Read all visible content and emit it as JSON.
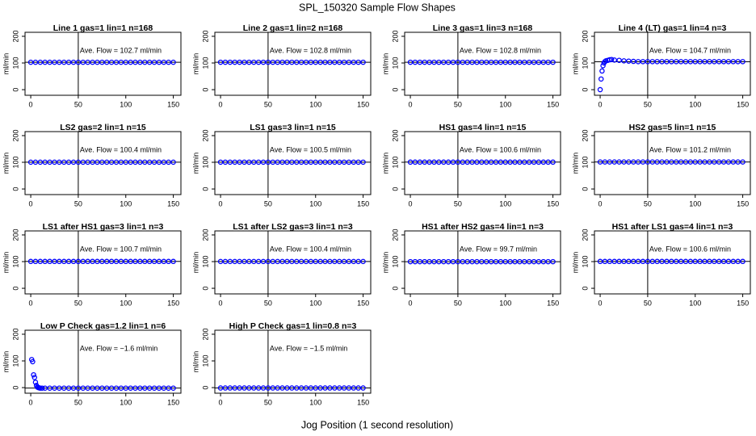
{
  "title": "SPL_150320  Sample Flow Shapes",
  "xlabel": "Jog Position (1 second resolution)",
  "chart_data": [
    {
      "type": "scatter",
      "title": "Line 1 gas=1 lin=1 n=168",
      "annotation": "Ave. Flow = 102.7  ml/min",
      "ylabel": "ml/min",
      "mean": 102.7,
      "vline": 50,
      "color": "#0000ff",
      "xlim": [
        -6,
        158
      ],
      "ylim": [
        -21,
        215
      ],
      "xticks": [
        0,
        50,
        100,
        150
      ],
      "yticks": [
        0,
        100,
        200
      ],
      "x": [
        0,
        5,
        10,
        15,
        20,
        25,
        30,
        35,
        40,
        45,
        50,
        55,
        60,
        65,
        70,
        75,
        80,
        85,
        90,
        95,
        100,
        105,
        110,
        115,
        120,
        125,
        130,
        135,
        140,
        145,
        150
      ],
      "y": [
        102.7,
        102.7,
        102.7,
        102.7,
        102.7,
        102.7,
        102.7,
        102.7,
        102.7,
        102.7,
        102.7,
        102.7,
        102.7,
        102.7,
        102.7,
        102.7,
        102.7,
        102.7,
        102.7,
        102.7,
        102.7,
        102.7,
        102.7,
        102.7,
        102.7,
        102.7,
        102.7,
        102.7,
        102.7,
        102.7,
        102.7
      ]
    },
    {
      "type": "scatter",
      "title": "Line 2 gas=1 lin=2 n=168",
      "annotation": "Ave. Flow = 102.8  ml/min",
      "ylabel": "ml/min",
      "mean": 102.8,
      "vline": 50,
      "color": "#0000ff",
      "xlim": [
        -6,
        158
      ],
      "ylim": [
        -21,
        215
      ],
      "xticks": [
        0,
        50,
        100,
        150
      ],
      "yticks": [
        0,
        100,
        200
      ],
      "x": [
        0,
        5,
        10,
        15,
        20,
        25,
        30,
        35,
        40,
        45,
        50,
        55,
        60,
        65,
        70,
        75,
        80,
        85,
        90,
        95,
        100,
        105,
        110,
        115,
        120,
        125,
        130,
        135,
        140,
        145,
        150
      ],
      "y": [
        102.8,
        102.8,
        102.8,
        102.8,
        102.8,
        102.8,
        102.8,
        102.8,
        102.8,
        102.8,
        102.8,
        102.8,
        102.8,
        102.8,
        102.8,
        102.8,
        102.8,
        102.8,
        102.8,
        102.8,
        102.8,
        102.8,
        102.8,
        102.8,
        102.8,
        102.8,
        102.8,
        102.8,
        102.8,
        102.8,
        102.8
      ]
    },
    {
      "type": "scatter",
      "title": "Line 3 gas=1 lin=3 n=168",
      "annotation": "Ave. Flow = 102.8  ml/min",
      "ylabel": "ml/min",
      "mean": 102.8,
      "vline": 50,
      "color": "#0000ff",
      "xlim": [
        -6,
        158
      ],
      "ylim": [
        -21,
        215
      ],
      "xticks": [
        0,
        50,
        100,
        150
      ],
      "yticks": [
        0,
        100,
        200
      ],
      "x": [
        0,
        5,
        10,
        15,
        20,
        25,
        30,
        35,
        40,
        45,
        50,
        55,
        60,
        65,
        70,
        75,
        80,
        85,
        90,
        95,
        100,
        105,
        110,
        115,
        120,
        125,
        130,
        135,
        140,
        145,
        150
      ],
      "y": [
        102.8,
        102.8,
        102.8,
        102.8,
        102.8,
        102.8,
        102.8,
        102.8,
        102.8,
        102.8,
        102.8,
        102.8,
        102.8,
        102.8,
        102.8,
        102.8,
        102.8,
        102.8,
        102.8,
        102.8,
        102.8,
        102.8,
        102.8,
        102.8,
        102.8,
        102.8,
        102.8,
        102.8,
        102.8,
        102.8,
        102.8
      ]
    },
    {
      "type": "scatter",
      "title": "Line 4 (LT) gas=1 lin=4 n=3",
      "annotation": "Ave. Flow = 104.7  ml/min",
      "ylabel": "ml/min",
      "mean": 104.7,
      "vline": 50,
      "color": "#0000ff",
      "xlim": [
        -6,
        158
      ],
      "ylim": [
        -21,
        215
      ],
      "xticks": [
        0,
        50,
        100,
        150
      ],
      "yticks": [
        0,
        100,
        200
      ],
      "x": [
        0,
        1,
        2,
        3,
        4,
        5,
        6,
        8,
        10,
        12,
        15,
        20,
        25,
        30,
        35,
        40,
        45,
        50,
        55,
        60,
        65,
        70,
        75,
        80,
        85,
        90,
        95,
        100,
        105,
        110,
        115,
        120,
        125,
        130,
        135,
        140,
        145,
        150
      ],
      "y": [
        0,
        40,
        70,
        90,
        100,
        105,
        108,
        110,
        112,
        113,
        111,
        110,
        108,
        107,
        106,
        105,
        105,
        105,
        105,
        105,
        105,
        105,
        105,
        105,
        105,
        105,
        105,
        105,
        105,
        105,
        105,
        105,
        105,
        105,
        105,
        105,
        105,
        105
      ]
    },
    {
      "type": "scatter",
      "title": "LS2 gas=2 lin=1 n=15",
      "annotation": "Ave. Flow = 100.4  ml/min",
      "ylabel": "ml/min",
      "mean": 100.4,
      "vline": 50,
      "color": "#0000ff",
      "xlim": [
        -6,
        158
      ],
      "ylim": [
        -21,
        215
      ],
      "xticks": [
        0,
        50,
        100,
        150
      ],
      "yticks": [
        0,
        100,
        200
      ],
      "x": [
        0,
        5,
        10,
        15,
        20,
        25,
        30,
        35,
        40,
        45,
        50,
        55,
        60,
        65,
        70,
        75,
        80,
        85,
        90,
        95,
        100,
        105,
        110,
        115,
        120,
        125,
        130,
        135,
        140,
        145,
        150
      ],
      "y": [
        100.4,
        100.4,
        100.4,
        100.4,
        100.4,
        100.4,
        100.4,
        100.4,
        100.4,
        100.4,
        100.4,
        100.4,
        100.4,
        100.4,
        100.4,
        100.4,
        100.4,
        100.4,
        100.4,
        100.4,
        100.4,
        100.4,
        100.4,
        100.4,
        100.4,
        100.4,
        100.4,
        100.4,
        100.4,
        100.4,
        100.4
      ]
    },
    {
      "type": "scatter",
      "title": "LS1 gas=3 lin=1 n=15",
      "annotation": "Ave. Flow = 100.5  ml/min",
      "ylabel": "ml/min",
      "mean": 100.5,
      "vline": 50,
      "color": "#0000ff",
      "xlim": [
        -6,
        158
      ],
      "ylim": [
        -21,
        215
      ],
      "xticks": [
        0,
        50,
        100,
        150
      ],
      "yticks": [
        0,
        100,
        200
      ],
      "x": [
        0,
        5,
        10,
        15,
        20,
        25,
        30,
        35,
        40,
        45,
        50,
        55,
        60,
        65,
        70,
        75,
        80,
        85,
        90,
        95,
        100,
        105,
        110,
        115,
        120,
        125,
        130,
        135,
        140,
        145,
        150
      ],
      "y": [
        100.5,
        100.5,
        100.5,
        100.5,
        100.5,
        100.5,
        100.5,
        100.5,
        100.5,
        100.5,
        100.5,
        100.5,
        100.5,
        100.5,
        100.5,
        100.5,
        100.5,
        100.5,
        100.5,
        100.5,
        100.5,
        100.5,
        100.5,
        100.5,
        100.5,
        100.5,
        100.5,
        100.5,
        100.5,
        100.5,
        100.5
      ]
    },
    {
      "type": "scatter",
      "title": "HS1 gas=4 lin=1 n=15",
      "annotation": "Ave. Flow = 100.6  ml/min",
      "ylabel": "ml/min",
      "mean": 100.6,
      "vline": 50,
      "color": "#0000ff",
      "xlim": [
        -6,
        158
      ],
      "ylim": [
        -21,
        215
      ],
      "xticks": [
        0,
        50,
        100,
        150
      ],
      "yticks": [
        0,
        100,
        200
      ],
      "x": [
        0,
        5,
        10,
        15,
        20,
        25,
        30,
        35,
        40,
        45,
        50,
        55,
        60,
        65,
        70,
        75,
        80,
        85,
        90,
        95,
        100,
        105,
        110,
        115,
        120,
        125,
        130,
        135,
        140,
        145,
        150
      ],
      "y": [
        100.6,
        100.6,
        100.6,
        100.6,
        100.6,
        100.6,
        100.6,
        100.6,
        100.6,
        100.6,
        100.6,
        100.6,
        100.6,
        100.6,
        100.6,
        100.6,
        100.6,
        100.6,
        100.6,
        100.6,
        100.6,
        100.6,
        100.6,
        100.6,
        100.6,
        100.6,
        100.6,
        100.6,
        100.6,
        100.6,
        100.6
      ]
    },
    {
      "type": "scatter",
      "title": "HS2 gas=5 lin=1 n=15",
      "annotation": "Ave. Flow = 101.2  ml/min",
      "ylabel": "ml/min",
      "mean": 101.2,
      "vline": 50,
      "color": "#0000ff",
      "xlim": [
        -6,
        158
      ],
      "ylim": [
        -21,
        215
      ],
      "xticks": [
        0,
        50,
        100,
        150
      ],
      "yticks": [
        0,
        100,
        200
      ],
      "x": [
        0,
        5,
        10,
        15,
        20,
        25,
        30,
        35,
        40,
        45,
        50,
        55,
        60,
        65,
        70,
        75,
        80,
        85,
        90,
        95,
        100,
        105,
        110,
        115,
        120,
        125,
        130,
        135,
        140,
        145,
        150
      ],
      "y": [
        101.2,
        101.2,
        101.2,
        101.2,
        101.2,
        101.2,
        101.2,
        101.2,
        101.2,
        101.2,
        101.2,
        101.2,
        101.2,
        101.2,
        101.2,
        101.2,
        101.2,
        101.2,
        101.2,
        101.2,
        101.2,
        101.2,
        101.2,
        101.2,
        101.2,
        101.2,
        101.2,
        101.2,
        101.2,
        101.2,
        101.2
      ]
    },
    {
      "type": "scatter",
      "title": "LS1 after HS1 gas=3 lin=1 n=3",
      "annotation": "Ave. Flow = 100.7  ml/min",
      "ylabel": "ml/min",
      "mean": 100.7,
      "vline": 50,
      "color": "#0000ff",
      "xlim": [
        -6,
        158
      ],
      "ylim": [
        -21,
        215
      ],
      "xticks": [
        0,
        50,
        100,
        150
      ],
      "yticks": [
        0,
        100,
        200
      ],
      "x": [
        0,
        5,
        10,
        15,
        20,
        25,
        30,
        35,
        40,
        45,
        50,
        55,
        60,
        65,
        70,
        75,
        80,
        85,
        90,
        95,
        100,
        105,
        110,
        115,
        120,
        125,
        130,
        135,
        140,
        145,
        150
      ],
      "y": [
        100.7,
        100.7,
        100.7,
        100.7,
        100.7,
        100.7,
        100.7,
        100.7,
        100.7,
        100.7,
        100.7,
        100.7,
        100.7,
        100.7,
        100.7,
        100.7,
        100.7,
        100.7,
        100.7,
        100.7,
        100.7,
        100.7,
        100.7,
        100.7,
        100.7,
        100.7,
        100.7,
        100.7,
        100.7,
        100.7,
        100.7
      ]
    },
    {
      "type": "scatter",
      "title": "LS1 after LS2 gas=3 lin=1 n=3",
      "annotation": "Ave. Flow = 100.4  ml/min",
      "ylabel": "ml/min",
      "mean": 100.4,
      "vline": 50,
      "color": "#0000ff",
      "xlim": [
        -6,
        158
      ],
      "ylim": [
        -21,
        215
      ],
      "xticks": [
        0,
        50,
        100,
        150
      ],
      "yticks": [
        0,
        100,
        200
      ],
      "x": [
        0,
        5,
        10,
        15,
        20,
        25,
        30,
        35,
        40,
        45,
        50,
        55,
        60,
        65,
        70,
        75,
        80,
        85,
        90,
        95,
        100,
        105,
        110,
        115,
        120,
        125,
        130,
        135,
        140,
        145,
        150
      ],
      "y": [
        100.4,
        100.4,
        100.4,
        100.4,
        100.4,
        100.4,
        100.4,
        100.4,
        100.4,
        100.4,
        100.4,
        100.4,
        100.4,
        100.4,
        100.4,
        100.4,
        100.4,
        100.4,
        100.4,
        100.4,
        100.4,
        100.4,
        100.4,
        100.4,
        100.4,
        100.4,
        100.4,
        100.4,
        100.4,
        100.4,
        100.4
      ]
    },
    {
      "type": "scatter",
      "title": "HS1 after HS2 gas=4 lin=1 n=3",
      "annotation": "Ave. Flow = 99.7  ml/min",
      "ylabel": "ml/min",
      "mean": 99.7,
      "vline": 50,
      "color": "#0000ff",
      "xlim": [
        -6,
        158
      ],
      "ylim": [
        -21,
        215
      ],
      "xticks": [
        0,
        50,
        100,
        150
      ],
      "yticks": [
        0,
        100,
        200
      ],
      "x": [
        0,
        5,
        10,
        15,
        20,
        25,
        30,
        35,
        40,
        45,
        50,
        55,
        60,
        65,
        70,
        75,
        80,
        85,
        90,
        95,
        100,
        105,
        110,
        115,
        120,
        125,
        130,
        135,
        140,
        145,
        150
      ],
      "y": [
        99.7,
        99.7,
        99.7,
        99.7,
        99.7,
        99.7,
        99.7,
        99.7,
        99.7,
        99.7,
        99.7,
        99.7,
        99.7,
        99.7,
        99.7,
        99.7,
        99.7,
        99.7,
        99.7,
        99.7,
        99.7,
        99.7,
        99.7,
        99.7,
        99.7,
        99.7,
        99.7,
        99.7,
        99.7,
        99.7,
        99.7
      ]
    },
    {
      "type": "scatter",
      "title": "HS1 after LS1 gas=4 lin=1 n=3",
      "annotation": "Ave. Flow = 100.6  ml/min",
      "ylabel": "ml/min",
      "mean": 100.6,
      "vline": 50,
      "color": "#0000ff",
      "xlim": [
        -6,
        158
      ],
      "ylim": [
        -21,
        215
      ],
      "xticks": [
        0,
        50,
        100,
        150
      ],
      "yticks": [
        0,
        100,
        200
      ],
      "x": [
        0,
        5,
        10,
        15,
        20,
        25,
        30,
        35,
        40,
        45,
        50,
        55,
        60,
        65,
        70,
        75,
        80,
        85,
        90,
        95,
        100,
        105,
        110,
        115,
        120,
        125,
        130,
        135,
        140,
        145,
        150
      ],
      "y": [
        100.6,
        100.6,
        100.6,
        100.6,
        100.6,
        100.6,
        100.6,
        100.6,
        100.6,
        100.6,
        100.6,
        100.6,
        100.6,
        100.6,
        100.6,
        100.6,
        100.6,
        100.6,
        100.6,
        100.6,
        100.6,
        100.6,
        100.6,
        100.6,
        100.6,
        100.6,
        100.6,
        100.6,
        100.6,
        100.6,
        100.6
      ]
    },
    {
      "type": "scatter",
      "title": "Low P Check gas=1.2 lin=1 n=6",
      "annotation": "Ave. Flow = −1.6  ml/min",
      "ylabel": "ml/min",
      "mean": -1.6,
      "vline": 50,
      "color": "#0000ff",
      "xlim": [
        -6,
        158
      ],
      "ylim": [
        -21,
        215
      ],
      "xticks": [
        0,
        50,
        100,
        150
      ],
      "yticks": [
        0,
        100,
        200
      ],
      "x": [
        1,
        2,
        3,
        4,
        5,
        6,
        7,
        8,
        9,
        10,
        12,
        15,
        20,
        25,
        30,
        35,
        40,
        45,
        50,
        55,
        60,
        65,
        70,
        75,
        80,
        85,
        90,
        95,
        100,
        105,
        110,
        115,
        120,
        125,
        130,
        135,
        140,
        145,
        150
      ],
      "y": [
        105,
        97,
        48,
        38,
        20,
        8,
        2,
        0,
        -1,
        -2,
        -2,
        -2,
        -2,
        -2,
        -2,
        -2,
        -2,
        -2,
        -2,
        -2,
        -2,
        -2,
        -2,
        -2,
        -2,
        -2,
        -2,
        -2,
        -2,
        -2,
        -2,
        -2,
        -2,
        -2,
        -2,
        -2,
        -2,
        -2,
        -2
      ]
    },
    {
      "type": "scatter",
      "title": "High P Check gas=1 lin=0.8 n=3",
      "annotation": "Ave. Flow = −1.5  ml/min",
      "ylabel": "ml/min",
      "mean": -1.5,
      "vline": 50,
      "color": "#0000ff",
      "xlim": [
        -6,
        158
      ],
      "ylim": [
        -21,
        215
      ],
      "xticks": [
        0,
        50,
        100,
        150
      ],
      "yticks": [
        0,
        100,
        200
      ],
      "x": [
        0,
        5,
        10,
        15,
        20,
        25,
        30,
        35,
        40,
        45,
        50,
        55,
        60,
        65,
        70,
        75,
        80,
        85,
        90,
        95,
        100,
        105,
        110,
        115,
        120,
        125,
        130,
        135,
        140,
        145,
        150
      ],
      "y": [
        -1.5,
        -1.5,
        -1.5,
        -1.5,
        -1.5,
        -1.5,
        -1.5,
        -1.5,
        -1.5,
        -1.5,
        -1.5,
        -1.5,
        -1.5,
        -1.5,
        -1.5,
        -1.5,
        -1.5,
        -1.5,
        -1.5,
        -1.5,
        -1.5,
        -1.5,
        -1.5,
        -1.5,
        -1.5,
        -1.5,
        -1.5,
        -1.5,
        -1.5,
        -1.5,
        -1.5
      ]
    }
  ]
}
